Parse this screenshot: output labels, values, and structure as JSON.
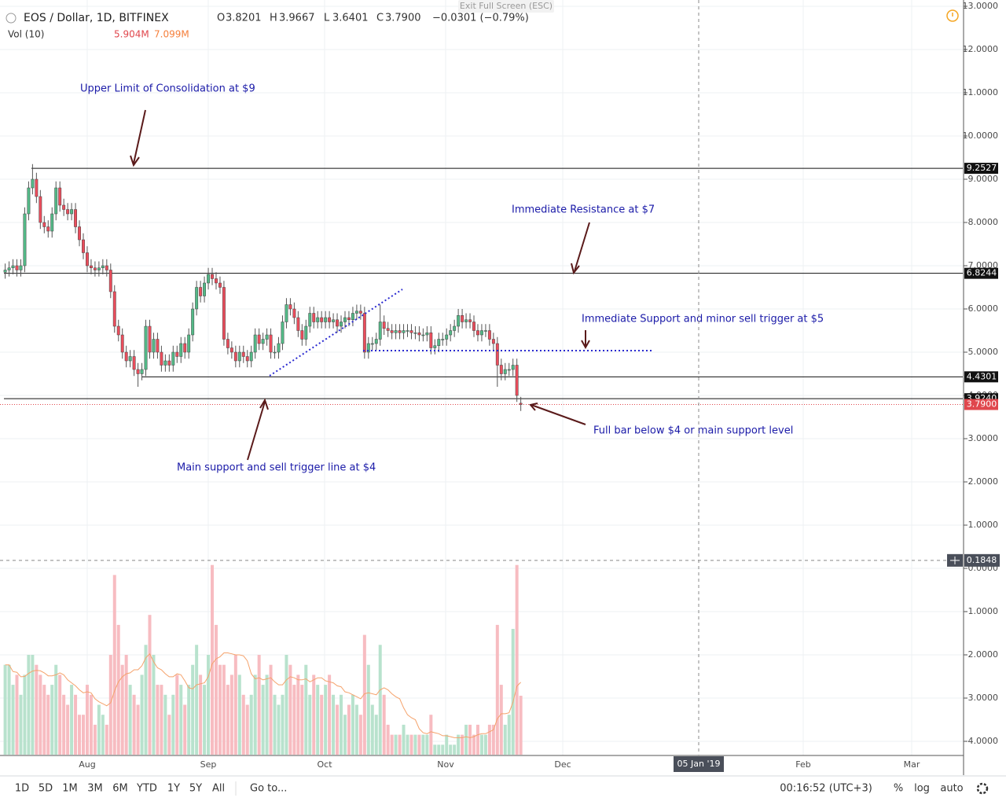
{
  "header": {
    "symbol": "EOS / Dollar, 1D, BITFINEX",
    "ohlc_labels": [
      "O",
      "H",
      "L",
      "C"
    ],
    "ohlc_values": [
      "3.8201",
      "3.9667",
      "3.6401",
      "3.7900"
    ],
    "change": "−0.0301 (−0.79%)",
    "volume_label": "Vol (10)",
    "volume_values": [
      "5.904M",
      "7.099M"
    ],
    "exit": "Exit Full Screen (ESC)"
  },
  "chart_data": {
    "type": "candlestick",
    "up_color": "#53b987",
    "down_color": "#eb4d5c",
    "grid": true,
    "open": [
      6.85,
      6.9,
      6.95,
      7.0,
      6.9,
      7.0,
      8.2,
      8.8,
      9.0,
      8.6,
      8.0,
      7.9,
      7.8,
      8.2,
      8.8,
      8.4,
      8.3,
      8.2,
      8.3,
      7.9,
      7.6,
      7.3,
      7.0,
      6.95,
      6.9,
      6.95,
      7.0,
      6.9,
      6.4,
      5.6,
      5.4,
      5.0,
      4.8,
      4.9,
      4.6,
      4.5,
      4.6,
      5.6,
      5.0,
      5.3,
      5.0,
      4.7,
      4.8,
      4.7,
      5.0,
      4.9,
      5.2,
      5.0,
      5.4,
      6.0,
      6.5,
      6.3,
      6.6,
      6.8,
      6.7,
      6.6,
      6.5,
      5.3,
      5.1,
      5.0,
      4.8,
      5.0,
      4.9,
      4.8,
      5.0,
      5.4,
      5.2,
      5.3,
      5.4,
      5.0,
      5.0,
      5.2,
      5.7,
      6.1,
      6.0,
      5.8,
      5.5,
      5.3,
      5.6,
      5.9,
      5.7,
      5.8,
      5.7,
      5.8,
      5.7,
      5.75,
      5.6,
      5.7,
      5.8,
      5.75,
      5.9,
      5.95,
      5.9,
      5.0,
      5.2,
      5.2,
      5.3,
      5.7,
      5.55,
      5.5,
      5.45,
      5.5,
      5.45,
      5.5,
      5.5,
      5.45,
      5.45,
      5.4,
      5.4,
      5.45,
      5.1,
      5.15,
      5.3,
      5.3,
      5.4,
      5.5,
      5.6,
      5.85,
      5.7,
      5.75,
      5.7,
      5.5,
      5.4,
      5.5,
      5.5,
      5.3,
      5.2,
      4.7,
      4.5,
      4.6,
      4.6,
      4.7,
      3.8201
    ],
    "high": [
      7.05,
      7.1,
      7.15,
      7.15,
      7.15,
      8.35,
      8.95,
      9.35,
      9.15,
      8.75,
      8.15,
      8.05,
      8.35,
      8.95,
      8.95,
      8.55,
      8.45,
      8.45,
      8.45,
      8.05,
      7.75,
      7.45,
      7.15,
      7.1,
      7.1,
      7.15,
      7.15,
      7.05,
      6.55,
      5.75,
      5.55,
      5.15,
      5.05,
      5.05,
      4.75,
      4.75,
      5.75,
      5.75,
      5.45,
      5.45,
      5.15,
      4.95,
      4.95,
      5.15,
      5.15,
      5.35,
      5.35,
      5.55,
      6.15,
      6.65,
      6.65,
      6.75,
      6.95,
      6.95,
      6.85,
      6.75,
      6.65,
      5.45,
      5.25,
      5.15,
      5.15,
      5.15,
      5.05,
      5.15,
      5.55,
      5.55,
      5.45,
      5.55,
      5.55,
      5.15,
      5.35,
      5.85,
      6.25,
      6.25,
      6.15,
      5.95,
      5.65,
      5.75,
      6.05,
      6.05,
      5.95,
      5.95,
      5.95,
      5.95,
      5.9,
      5.9,
      5.85,
      5.95,
      5.95,
      6.05,
      6.1,
      6.1,
      6.05,
      5.35,
      5.35,
      5.45,
      6.1,
      5.85,
      5.7,
      5.65,
      5.65,
      5.65,
      5.65,
      5.65,
      5.65,
      5.6,
      5.6,
      5.55,
      5.6,
      5.6,
      5.3,
      5.45,
      5.45,
      5.55,
      5.65,
      5.75,
      6.0,
      6.0,
      5.9,
      5.9,
      5.85,
      5.65,
      5.65,
      5.65,
      5.65,
      5.45,
      5.35,
      4.85,
      4.75,
      4.75,
      4.85,
      4.85,
      3.9667
    ],
    "low": [
      6.7,
      6.75,
      6.8,
      6.75,
      6.75,
      6.85,
      8.05,
      8.65,
      8.45,
      7.85,
      7.75,
      7.65,
      7.65,
      8.05,
      8.25,
      8.15,
      8.05,
      8.05,
      7.75,
      7.45,
      7.15,
      6.85,
      6.8,
      6.75,
      6.75,
      6.8,
      6.75,
      6.25,
      5.45,
      5.25,
      4.85,
      4.65,
      4.65,
      4.45,
      4.2,
      4.35,
      4.45,
      4.85,
      4.85,
      4.85,
      4.55,
      4.55,
      4.55,
      4.55,
      4.75,
      4.75,
      4.85,
      4.85,
      5.25,
      5.85,
      6.15,
      6.15,
      6.45,
      6.55,
      6.45,
      6.35,
      5.15,
      4.95,
      4.85,
      4.65,
      4.65,
      4.75,
      4.65,
      4.65,
      4.85,
      5.05,
      5.05,
      5.15,
      4.85,
      4.85,
      4.85,
      5.05,
      5.55,
      5.85,
      5.65,
      5.35,
      5.15,
      5.15,
      5.45,
      5.55,
      5.55,
      5.55,
      5.55,
      5.55,
      5.55,
      5.45,
      5.45,
      5.55,
      5.6,
      5.6,
      5.75,
      5.75,
      4.85,
      4.85,
      5.05,
      5.05,
      5.15,
      5.4,
      5.35,
      5.3,
      5.3,
      5.3,
      5.3,
      5.35,
      5.3,
      5.3,
      5.25,
      5.25,
      5.25,
      4.95,
      4.95,
      5.0,
      5.15,
      5.15,
      5.25,
      5.35,
      5.45,
      5.55,
      5.55,
      5.55,
      5.35,
      5.25,
      5.25,
      5.35,
      5.15,
      5.05,
      4.2,
      4.35,
      4.35,
      4.45,
      4.45,
      3.85,
      3.6401
    ],
    "close": [
      6.9,
      6.95,
      7.0,
      6.9,
      7.0,
      8.2,
      8.8,
      9.0,
      8.6,
      8.0,
      7.9,
      7.8,
      8.2,
      8.8,
      8.4,
      8.3,
      8.2,
      8.3,
      7.9,
      7.6,
      7.3,
      7.0,
      6.95,
      6.9,
      6.95,
      7.0,
      6.9,
      6.4,
      5.6,
      5.4,
      5.0,
      4.8,
      4.9,
      4.6,
      4.5,
      4.6,
      5.6,
      5.0,
      5.3,
      5.0,
      4.7,
      4.8,
      4.7,
      5.0,
      4.9,
      5.2,
      5.0,
      5.4,
      6.0,
      6.5,
      6.3,
      6.6,
      6.8,
      6.7,
      6.6,
      6.5,
      5.3,
      5.1,
      5.0,
      4.8,
      5.0,
      4.9,
      4.8,
      5.0,
      5.4,
      5.2,
      5.3,
      5.4,
      5.0,
      5.0,
      5.2,
      5.7,
      6.1,
      6.0,
      5.8,
      5.5,
      5.3,
      5.6,
      5.9,
      5.7,
      5.8,
      5.7,
      5.8,
      5.7,
      5.75,
      5.6,
      5.7,
      5.8,
      5.75,
      5.9,
      5.95,
      5.9,
      5.0,
      5.2,
      5.2,
      5.3,
      5.7,
      5.55,
      5.5,
      5.45,
      5.5,
      5.45,
      5.5,
      5.5,
      5.45,
      5.45,
      5.4,
      5.4,
      5.45,
      5.1,
      5.15,
      5.3,
      5.3,
      5.4,
      5.5,
      5.6,
      5.85,
      5.7,
      5.75,
      5.7,
      5.5,
      5.4,
      5.5,
      5.5,
      5.3,
      5.2,
      4.7,
      4.5,
      4.6,
      4.6,
      4.7,
      4.0,
      3.79
    ],
    "volume": [
      9,
      9,
      7,
      8,
      6,
      8,
      10,
      10,
      9,
      8,
      7,
      6,
      7,
      9,
      8,
      6,
      5,
      7,
      6,
      4,
      4,
      7,
      6,
      3,
      5,
      4,
      3,
      10,
      18,
      13,
      9,
      10,
      7,
      6,
      5,
      8,
      11,
      14,
      10,
      7,
      7,
      6,
      4,
      6,
      8,
      7,
      5,
      7,
      9,
      11,
      8,
      7,
      10,
      19,
      13,
      9,
      9,
      7,
      8,
      10,
      8,
      6,
      5,
      6,
      8,
      10,
      7,
      8,
      9,
      6,
      5,
      6,
      10,
      9,
      7,
      8,
      7,
      9,
      6,
      8,
      7,
      6,
      7,
      8,
      6,
      5,
      6,
      4,
      5,
      6,
      5,
      4,
      12,
      9,
      5,
      4,
      11,
      6,
      3,
      2,
      2,
      2,
      3,
      2,
      2,
      2,
      2,
      2,
      2,
      4,
      1,
      1,
      1,
      2,
      1,
      1,
      2,
      2,
      3,
      3,
      2,
      3,
      2,
      2,
      3,
      3,
      13,
      7,
      3,
      4,
      12.6,
      19,
      5.904
    ],
    "yticks": [
      {
        "value": 13,
        "label": "13.0000"
      },
      {
        "value": 12,
        "label": "12.0000"
      },
      {
        "value": 11,
        "label": "11.0000"
      },
      {
        "value": 10,
        "label": "10.0000"
      },
      {
        "value": 9,
        "label": "9.0000"
      },
      {
        "value": 8,
        "label": "8.0000"
      },
      {
        "value": 7,
        "label": "7.0000"
      },
      {
        "value": 6,
        "label": "6.0000"
      },
      {
        "value": 5,
        "label": "5.0000"
      },
      {
        "value": 4,
        "label": "4.0000"
      },
      {
        "value": 3,
        "label": "3.0000"
      },
      {
        "value": 2,
        "label": "2.0000"
      },
      {
        "value": 1,
        "label": "1.0000"
      },
      {
        "value": 0,
        "label": "0.0000"
      },
      {
        "value": -1,
        "label": "-1.0000"
      },
      {
        "value": -2,
        "label": "-2.0000"
      },
      {
        "value": -3,
        "label": "-3.0000"
      },
      {
        "value": -4,
        "label": "-4.0000"
      }
    ],
    "price_lines": [
      {
        "value": 9.2527,
        "label": "9.2527"
      },
      {
        "value": 6.8244,
        "label": "6.8244"
      },
      {
        "value": 4.4301,
        "label": "4.4301"
      },
      {
        "value": 3.924,
        "label": "3.9240"
      }
    ],
    "last_price": {
      "value": 3.79,
      "label": "3.7900"
    },
    "crosshair": {
      "value": 0.1848,
      "label": "0.1848"
    },
    "x_labels": [
      "Aug",
      "Sep",
      "Oct",
      "Nov",
      "Dec",
      "Feb",
      "Mar"
    ],
    "crosshair_x_label": "05 Jan '19",
    "annotations": [
      "Upper Limit of Consolidation at $9",
      "Immediate Resistance at $7",
      "Immediate Support and minor sell trigger at $5",
      "Full bar below $4 or main support level",
      "Main support and sell trigger line at $4"
    ]
  },
  "toolbar": {
    "ranges": [
      "1D",
      "5D",
      "1M",
      "3M",
      "6M",
      "YTD",
      "1Y",
      "5Y",
      "All"
    ],
    "goto": "Go to...",
    "clock": "00:16:52 (UTC+3)",
    "options": [
      "%",
      "log",
      "auto"
    ]
  }
}
